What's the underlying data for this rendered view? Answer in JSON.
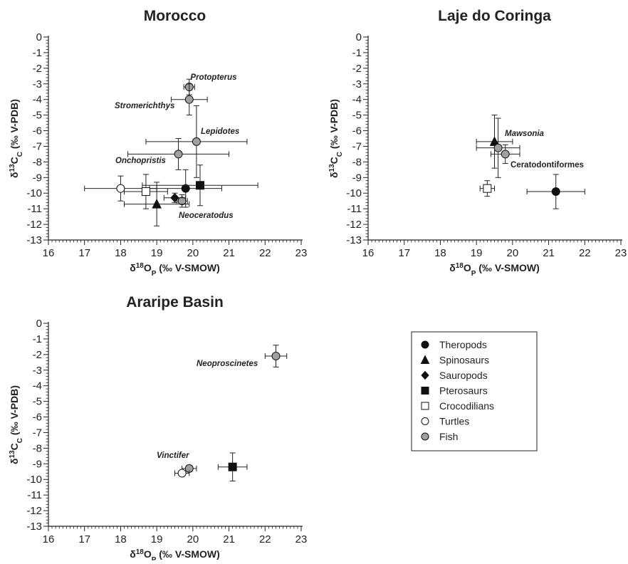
{
  "legend": [
    {
      "series": "Theropods",
      "marker": "circle",
      "fill": "#111111"
    },
    {
      "series": "Spinosaurs",
      "marker": "triangle",
      "fill": "#111111"
    },
    {
      "series": "Sauropods",
      "marker": "diamond",
      "fill": "#111111"
    },
    {
      "series": "Pterosaurs",
      "marker": "square",
      "fill": "#111111"
    },
    {
      "series": "Crocodilians",
      "marker": "square",
      "fill": "#ffffff"
    },
    {
      "series": "Turtles",
      "marker": "circle",
      "fill": "#ffffff"
    },
    {
      "series": "Fish",
      "marker": "circle",
      "fill": "#a0a0a0"
    }
  ],
  "chart_data": [
    {
      "type": "scatter",
      "title": "Morocco",
      "xlabel": "δ18OP (‰ V-SMOW)",
      "ylabel": "δ13CC (‰ V-PDB)",
      "xlim": [
        16,
        23
      ],
      "ylim": [
        -13,
        0
      ],
      "xticks": [
        "16",
        "17",
        "18",
        "19",
        "20",
        "21",
        "22",
        "23"
      ],
      "yticks": [
        "0",
        "-1",
        "-2",
        "-3",
        "-4",
        "-5",
        "-6",
        "-7",
        "-8",
        "-9",
        "-10",
        "-11",
        "-12",
        "-13"
      ],
      "points": [
        {
          "series": "Fish",
          "x": 19.9,
          "y": -3.2,
          "xerr": 0.15,
          "yerr": 0.5
        },
        {
          "series": "Fish",
          "x": 19.9,
          "y": -4.0,
          "xerr": 0.5,
          "yerr": 1.0
        },
        {
          "series": "Fish",
          "x": 20.1,
          "y": -6.7,
          "xerr": 1.4,
          "yerr": 2.3
        },
        {
          "series": "Fish",
          "x": 19.6,
          "y": -7.5,
          "xerr": 1.4,
          "yerr": 1.0
        },
        {
          "series": "Fish",
          "x": 19.7,
          "y": -10.5,
          "xerr": 0.15,
          "yerr": 0.4
        },
        {
          "series": "Theropods",
          "x": 19.8,
          "y": -9.7,
          "xerr": 1.0,
          "yerr": 1.2
        },
        {
          "series": "Pterosaurs",
          "x": 20.2,
          "y": -9.5,
          "xerr": 1.6,
          "yerr": 1.3
        },
        {
          "series": "Turtles",
          "x": 18.0,
          "y": -9.7,
          "xerr": 1.0,
          "yerr": 0.8
        },
        {
          "series": "Crocodilians",
          "x": 18.7,
          "y": -9.9,
          "xerr": 0.6,
          "yerr": 1.1
        },
        {
          "series": "Spinosaurs",
          "x": 19.0,
          "y": -10.7,
          "xerr": 0.9,
          "yerr": 1.4
        },
        {
          "series": "Sauropods",
          "x": 19.5,
          "y": -10.3,
          "xerr": 0.3,
          "yerr": 0.3
        }
      ],
      "annotations": [
        {
          "text": "Protopterus",
          "italic": true
        },
        {
          "text": "Stromerichthys",
          "italic": true
        },
        {
          "text": "Lepidotes",
          "italic": true
        },
        {
          "text": "Onchopristis",
          "italic": true
        },
        {
          "text": "Neoceratodus",
          "italic": true
        }
      ]
    },
    {
      "type": "scatter",
      "title": "Laje do Coringa",
      "xlabel": "δ18OP (‰ V-SMOW)",
      "ylabel": "δ13CC (‰ V-PDB)",
      "xlim": [
        16,
        23
      ],
      "ylim": [
        -13,
        0
      ],
      "xticks": [
        "16",
        "17",
        "18",
        "19",
        "20",
        "21",
        "22",
        "23"
      ],
      "yticks": [
        "0",
        "-1",
        "-2",
        "-3",
        "-4",
        "-5",
        "-6",
        "-7",
        "-8",
        "-9",
        "-10",
        "-11",
        "-12",
        "-13"
      ],
      "points": [
        {
          "series": "Spinosaurs",
          "x": 19.5,
          "y": -6.7,
          "xerr": 0.5,
          "yerr": 1.7
        },
        {
          "series": "Fish",
          "x": 19.6,
          "y": -7.1,
          "xerr": 0.6,
          "yerr": 1.9
        },
        {
          "series": "Fish",
          "x": 19.8,
          "y": -7.5,
          "xerr": 0.4,
          "yerr": 0.6
        },
        {
          "series": "Crocodilians",
          "x": 19.3,
          "y": -9.7,
          "xerr": 0.2,
          "yerr": 0.5
        },
        {
          "series": "Theropods",
          "x": 21.2,
          "y": -9.9,
          "xerr": 0.8,
          "yerr": 1.1
        }
      ],
      "annotations": [
        {
          "text": "Mawsonia",
          "italic": true
        },
        {
          "text": "Ceratodontiformes",
          "italic": false
        }
      ]
    },
    {
      "type": "scatter",
      "title": "Araripe Basin",
      "xlabel": "δ18OP (‰ V-SMOW)",
      "ylabel": "δ13CC (‰ V-PDB)",
      "xlim": [
        16,
        23
      ],
      "ylim": [
        -13,
        0
      ],
      "xticks": [
        "16",
        "17",
        "18",
        "19",
        "20",
        "21",
        "22",
        "23"
      ],
      "yticks": [
        "0",
        "-1",
        "-2",
        "-3",
        "-4",
        "-5",
        "-6",
        "-7",
        "-8",
        "-9",
        "-10",
        "-11",
        "-12",
        "-13"
      ],
      "points": [
        {
          "series": "Fish",
          "x": 22.3,
          "y": -2.1,
          "xerr": 0.3,
          "yerr": 0.7
        },
        {
          "series": "Fish",
          "x": 19.9,
          "y": -9.3,
          "xerr": 0.2,
          "yerr": 0.2
        },
        {
          "series": "Turtles",
          "x": 19.7,
          "y": -9.6,
          "xerr": 0.2,
          "yerr": 0.1
        },
        {
          "series": "Pterosaurs",
          "x": 21.1,
          "y": -9.2,
          "xerr": 0.4,
          "yerr": 0.9
        }
      ],
      "annotations": [
        {
          "text": "Neoproscinetes",
          "italic": true
        },
        {
          "text": "Vinctifer",
          "italic": true
        }
      ]
    }
  ]
}
